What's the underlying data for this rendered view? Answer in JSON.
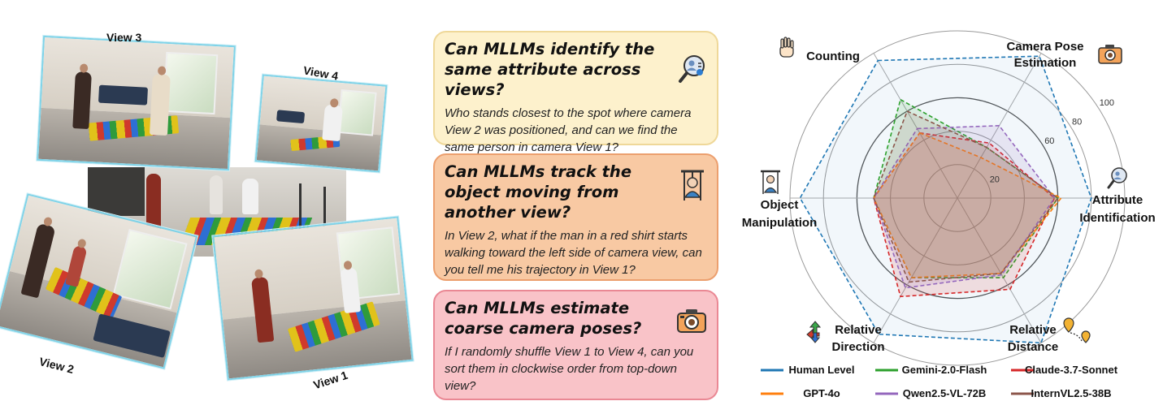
{
  "views": {
    "view1": "View 1",
    "view2": "View 2",
    "view3": "View 3",
    "view4": "View 4"
  },
  "cards": [
    {
      "question": "Can MLLMs identify the same attribute across views?",
      "text": "Who stands closest to the spot where camera View 2 was positioned, and can we find the same person in camera View 1?",
      "icon": "attribute-search-icon"
    },
    {
      "question": "Can MLLMs track the object moving from another view?",
      "text": "In View 2,  what if the man in a red shirt starts walking toward the left side of camera view, can you tell me his trajectory in View 1?",
      "icon": "object-manipulation-icon"
    },
    {
      "question": "Can MLLMs estimate coarse camera poses?",
      "text": "If I randomly shuffle View 1 to View 4, can you sort them in clockwise order from top-down view?",
      "icon": "camera-icon"
    }
  ],
  "chart_data": {
    "type": "radar",
    "axes": [
      "Counting",
      "Camera Pose Estimation",
      "Attribute Identification",
      "Relative Distance",
      "Relative Direction",
      "Object Manipulation"
    ],
    "rlim": [
      0,
      100
    ],
    "ticks": [
      20,
      60,
      80,
      100
    ],
    "series": [
      {
        "name": "Human Level",
        "color": "#1f77b4",
        "values": [
          95,
          98,
          80,
          100,
          94,
          94
        ]
      },
      {
        "name": "Gemini-2.0-Flash",
        "color": "#2ca02c",
        "values": [
          68,
          35,
          60,
          55,
          55,
          50
        ]
      },
      {
        "name": "Claude-3.7-Sonnet",
        "color": "#d62728",
        "values": [
          45,
          38,
          58,
          63,
          68,
          50
        ]
      },
      {
        "name": "GPT-4o",
        "color": "#ff7f0e",
        "values": [
          45,
          28,
          62,
          52,
          55,
          50
        ]
      },
      {
        "name": "Qwen2.5-VL-72B",
        "color": "#9467bd",
        "values": [
          48,
          50,
          58,
          53,
          62,
          50
        ]
      },
      {
        "name": "InternVL2.5-38B",
        "color": "#8c564b",
        "values": [
          60,
          35,
          60,
          52,
          58,
          50
        ]
      }
    ]
  }
}
